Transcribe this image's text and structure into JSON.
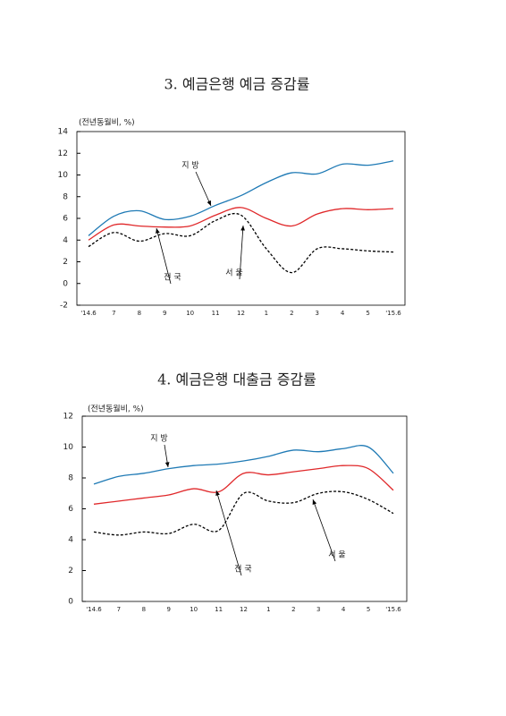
{
  "chart_data": [
    {
      "type": "line",
      "title": "3. 예금은행 예금 증감률",
      "y_label": "(전년동월비, %)",
      "categories": [
        "'14.6",
        "7",
        "8",
        "9",
        "10",
        "11",
        "12",
        "1",
        "2",
        "3",
        "4",
        "5",
        "'15.6"
      ],
      "ylim": [
        -2,
        14
      ],
      "yticks": [
        -2,
        0,
        2,
        4,
        6,
        8,
        10,
        12,
        14
      ],
      "series": [
        {
          "name": "지 방",
          "color": "#1f7ab5",
          "values": [
            4.4,
            6.2,
            6.7,
            5.9,
            6.2,
            7.2,
            8.1,
            9.3,
            10.2,
            10.1,
            11.0,
            10.9,
            11.3
          ]
        },
        {
          "name": "전 국",
          "color": "#e0282a",
          "values": [
            4.0,
            5.4,
            5.3,
            5.2,
            5.3,
            6.3,
            7.0,
            6.0,
            5.3,
            6.4,
            6.9,
            6.8,
            6.9
          ]
        },
        {
          "name": "서 울",
          "color": "#000000",
          "dashed": true,
          "values": [
            3.4,
            4.7,
            3.9,
            4.6,
            4.4,
            5.8,
            6.3,
            3.2,
            1.0,
            3.2,
            3.2,
            3.0,
            2.9
          ]
        }
      ]
    },
    {
      "type": "line",
      "title": "4. 예금은행 대출금 증감률",
      "y_label": "(전년동월비, %)",
      "categories": [
        "'14.6",
        "7",
        "8",
        "9",
        "10",
        "11",
        "12",
        "1",
        "2",
        "3",
        "4",
        "5",
        "'15.6"
      ],
      "ylim": [
        0,
        12
      ],
      "yticks": [
        0,
        2,
        4,
        6,
        8,
        10,
        12
      ],
      "series": [
        {
          "name": "지 방",
          "color": "#1f7ab5",
          "values": [
            7.6,
            8.1,
            8.3,
            8.6,
            8.8,
            8.9,
            9.1,
            9.4,
            9.8,
            9.7,
            9.9,
            10.0,
            8.3
          ]
        },
        {
          "name": "전 국",
          "color": "#e0282a",
          "values": [
            6.3,
            6.5,
            6.7,
            6.9,
            7.3,
            7.1,
            8.3,
            8.2,
            8.4,
            8.6,
            8.8,
            8.6,
            7.2
          ]
        },
        {
          "name": "서 울",
          "color": "#000000",
          "dashed": true,
          "values": [
            4.5,
            4.3,
            4.5,
            4.4,
            5.0,
            4.6,
            7.0,
            6.5,
            6.4,
            7.0,
            7.1,
            6.6,
            5.7
          ]
        }
      ]
    }
  ]
}
